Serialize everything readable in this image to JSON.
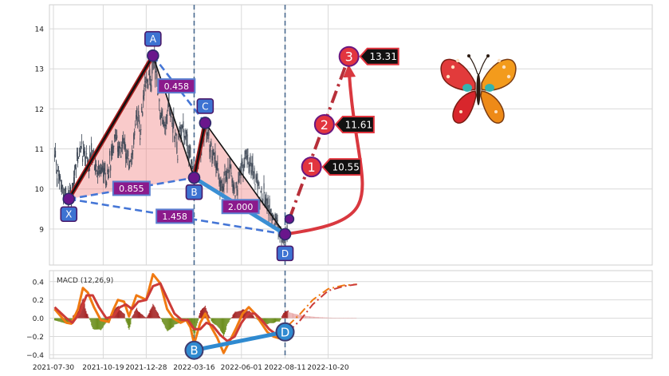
{
  "chart_data": [
    {
      "type": "candlestick",
      "panel": "price",
      "x_ticks": [
        "2021-07-30",
        "2021-10-19",
        "2021-12-28",
        "2022-03-16",
        "2022-06-01",
        "2022-08-11",
        "2022-10-20"
      ],
      "y_ticks": [
        9,
        10,
        11,
        12,
        13,
        14
      ],
      "ylim": [
        8.1,
        14.6
      ],
      "grid": true,
      "price_path": [
        [
          "2021-08-01",
          10.9
        ],
        [
          "2021-08-05",
          10.3
        ],
        [
          "2021-08-12",
          10.0
        ],
        [
          "2021-08-20",
          9.85
        ],
        [
          "2021-08-24",
          9.75
        ],
        [
          "2021-08-30",
          10.0
        ],
        [
          "2021-09-05",
          10.6
        ],
        [
          "2021-09-12",
          11.1
        ],
        [
          "2021-09-18",
          10.8
        ],
        [
          "2021-09-25",
          10.6
        ],
        [
          "2021-10-02",
          11.0
        ],
        [
          "2021-10-10",
          10.4
        ],
        [
          "2021-10-19",
          10.5
        ],
        [
          "2021-10-25",
          10.3
        ],
        [
          "2021-11-01",
          10.8
        ],
        [
          "2021-11-08",
          11.5
        ],
        [
          "2021-11-15",
          10.9
        ],
        [
          "2021-11-22",
          11.2
        ],
        [
          "2021-11-30",
          10.6
        ],
        [
          "2021-12-06",
          11.0
        ],
        [
          "2021-12-12",
          12.0
        ],
        [
          "2021-12-18",
          11.4
        ],
        [
          "2021-12-24",
          12.3
        ],
        [
          "2021-12-30",
          12.8
        ],
        [
          "2022-01-05",
          12.6
        ],
        [
          "2022-01-08",
          13.3
        ],
        [
          "2022-01-14",
          12.8
        ],
        [
          "2022-01-20",
          12.0
        ],
        [
          "2022-01-27",
          11.4
        ],
        [
          "2022-02-03",
          12.2
        ],
        [
          "2022-02-10",
          11.6
        ],
        [
          "2022-02-17",
          11.0
        ],
        [
          "2022-02-24",
          11.8
        ],
        [
          "2022-03-03",
          11.2
        ],
        [
          "2022-03-09",
          10.9
        ],
        [
          "2022-03-16",
          10.3
        ],
        [
          "2022-03-22",
          10.7
        ],
        [
          "2022-03-28",
          11.1
        ],
        [
          "2022-04-03",
          11.6
        ],
        [
          "2022-04-09",
          11.2
        ],
        [
          "2022-04-16",
          10.8
        ],
        [
          "2022-04-23",
          10.6
        ],
        [
          "2022-04-30",
          10.0
        ],
        [
          "2022-05-07",
          10.4
        ],
        [
          "2022-05-14",
          10.5
        ],
        [
          "2022-05-21",
          9.8
        ],
        [
          "2022-05-28",
          10.2
        ],
        [
          "2022-06-04",
          10.6
        ],
        [
          "2022-06-10",
          10.7
        ],
        [
          "2022-06-16",
          10.6
        ],
        [
          "2022-06-20",
          10.5
        ],
        [
          "2022-06-26",
          10.2
        ],
        [
          "2022-07-02",
          9.9
        ],
        [
          "2022-07-09",
          9.8
        ],
        [
          "2022-07-16",
          9.5
        ],
        [
          "2022-07-23",
          9.3
        ],
        [
          "2022-07-30",
          9.1
        ],
        [
          "2022-08-05",
          9.0
        ],
        [
          "2022-08-11",
          8.85
        ],
        [
          "2022-08-14",
          9.05
        ]
      ],
      "pattern": {
        "points": [
          {
            "label": "X",
            "date": "2021-08-24",
            "price": 9.75
          },
          {
            "label": "A",
            "date": "2022-01-08",
            "price": 13.33
          },
          {
            "label": "B",
            "date": "2022-03-16",
            "price": 10.28
          },
          {
            "label": "C",
            "date": "2022-04-03",
            "price": 11.65
          },
          {
            "label": "D",
            "date": "2022-08-11",
            "price": 8.87
          }
        ],
        "ratios": [
          {
            "value": "0.458",
            "between": [
              "A",
              "C"
            ]
          },
          {
            "value": "0.855",
            "between": [
              "X",
              "B"
            ]
          },
          {
            "value": "1.458",
            "between": [
              "X",
              "D"
            ]
          },
          {
            "value": "2.000",
            "between": [
              "B",
              "D"
            ]
          }
        ],
        "targets": [
          {
            "label": "1",
            "date": "2022-09-23",
            "price": 10.55,
            "text": "10.55"
          },
          {
            "label": "2",
            "date": "2022-10-14",
            "price": 11.61,
            "text": "11.61"
          },
          {
            "label": "3",
            "date": "2022-11-23",
            "price": 13.31,
            "text": "13.31"
          }
        ],
        "vertical_markers": [
          "2022-03-16",
          "2022-08-11"
        ],
        "projection_start": {
          "date": "2022-08-18",
          "price": 9.25
        }
      }
    },
    {
      "type": "line",
      "panel": "indicator",
      "title": "MACD (12,26,9)",
      "x_ticks": [
        "2021-07-30",
        "2021-10-19",
        "2021-12-28",
        "2022-03-16",
        "2022-06-01",
        "2022-08-11",
        "2022-10-20"
      ],
      "y_ticks": [
        "0.4",
        "0.2",
        "0.0",
        "−0.2",
        "−0.4"
      ],
      "ylim": [
        -0.44,
        0.52
      ],
      "grid": true,
      "series": [
        {
          "key": "macd",
          "color": "#f07a12",
          "points": [
            [
              "2021-08-01",
              0.1
            ],
            [
              "2021-08-20",
              -0.05
            ],
            [
              "2021-08-28",
              -0.06
            ],
            [
              "2021-09-08",
              0.1
            ],
            [
              "2021-09-16",
              0.33
            ],
            [
              "2021-09-24",
              0.28
            ],
            [
              "2021-10-04",
              0.12
            ],
            [
              "2021-10-15",
              -0.02
            ],
            [
              "2021-10-28",
              -0.04
            ],
            [
              "2021-11-05",
              0.1
            ],
            [
              "2021-11-12",
              0.2
            ],
            [
              "2021-11-22",
              0.18
            ],
            [
              "2021-11-30",
              0.02
            ],
            [
              "2021-12-12",
              0.25
            ],
            [
              "2021-12-22",
              0.22
            ],
            [
              "2021-12-28",
              0.2
            ],
            [
              "2022-01-08",
              0.48
            ],
            [
              "2022-01-20",
              0.38
            ],
            [
              "2022-01-31",
              0.1
            ],
            [
              "2022-02-10",
              0.0
            ],
            [
              "2022-02-22",
              -0.05
            ],
            [
              "2022-03-03",
              -0.02
            ],
            [
              "2022-03-10",
              -0.1
            ],
            [
              "2022-03-16",
              -0.28
            ],
            [
              "2022-03-26",
              -0.05
            ],
            [
              "2022-04-03",
              0.05
            ],
            [
              "2022-04-13",
              -0.1
            ],
            [
              "2022-04-23",
              -0.22
            ],
            [
              "2022-05-03",
              -0.38
            ],
            [
              "2022-05-13",
              -0.25
            ],
            [
              "2022-05-24",
              -0.1
            ],
            [
              "2022-06-03",
              0.05
            ],
            [
              "2022-06-13",
              0.12
            ],
            [
              "2022-06-23",
              0.05
            ],
            [
              "2022-07-03",
              -0.05
            ],
            [
              "2022-07-13",
              -0.15
            ],
            [
              "2022-07-23",
              -0.2
            ],
            [
              "2022-08-02",
              -0.22
            ],
            [
              "2022-08-11",
              -0.12
            ],
            [
              "2022-08-16",
              -0.08
            ]
          ]
        },
        {
          "key": "signal",
          "color": "#cc3b37",
          "points": [
            [
              "2021-08-01",
              0.12
            ],
            [
              "2021-08-20",
              0.0
            ],
            [
              "2021-08-30",
              -0.05
            ],
            [
              "2021-09-10",
              0.05
            ],
            [
              "2021-09-22",
              0.25
            ],
            [
              "2021-10-02",
              0.25
            ],
            [
              "2021-10-12",
              0.12
            ],
            [
              "2021-10-24",
              0.0
            ],
            [
              "2021-11-05",
              0.02
            ],
            [
              "2021-11-15",
              0.12
            ],
            [
              "2021-11-25",
              0.15
            ],
            [
              "2021-12-05",
              0.1
            ],
            [
              "2021-12-15",
              0.18
            ],
            [
              "2021-12-28",
              0.2
            ],
            [
              "2022-01-08",
              0.35
            ],
            [
              "2022-01-20",
              0.38
            ],
            [
              "2022-01-31",
              0.22
            ],
            [
              "2022-02-12",
              0.05
            ],
            [
              "2022-02-24",
              -0.02
            ],
            [
              "2022-03-06",
              -0.02
            ],
            [
              "2022-03-16",
              -0.12
            ],
            [
              "2022-03-26",
              -0.12
            ],
            [
              "2022-04-05",
              -0.05
            ],
            [
              "2022-04-15",
              -0.08
            ],
            [
              "2022-04-27",
              -0.18
            ],
            [
              "2022-05-09",
              -0.25
            ],
            [
              "2022-05-21",
              -0.2
            ],
            [
              "2022-06-01",
              -0.05
            ],
            [
              "2022-06-12",
              0.05
            ],
            [
              "2022-06-23",
              0.05
            ],
            [
              "2022-07-04",
              -0.02
            ],
            [
              "2022-07-16",
              -0.12
            ],
            [
              "2022-07-28",
              -0.18
            ],
            [
              "2022-08-08",
              -0.2
            ],
            [
              "2022-08-16",
              -0.15
            ]
          ]
        }
      ],
      "projection": [
        {
          "key": "macd",
          "color": "#f07a12",
          "points": [
            [
              "2022-08-16",
              -0.08
            ],
            [
              "2022-09-05",
              0.05
            ],
            [
              "2022-09-25",
              0.2
            ],
            [
              "2022-10-20",
              0.32
            ],
            [
              "2022-11-15",
              0.36
            ],
            [
              "2022-12-06",
              0.37
            ]
          ]
        },
        {
          "key": "signal",
          "color": "#cc3b37",
          "points": [
            [
              "2022-08-16",
              -0.15
            ],
            [
              "2022-09-05",
              -0.02
            ],
            [
              "2022-09-25",
              0.15
            ],
            [
              "2022-10-20",
              0.3
            ],
            [
              "2022-11-15",
              0.35
            ],
            [
              "2022-12-06",
              0.37
            ]
          ]
        }
      ],
      "divergence": [
        {
          "label": "B",
          "date": "2022-03-16",
          "value": -0.35
        },
        {
          "label": "D",
          "date": "2022-08-11",
          "value": -0.15
        }
      ]
    }
  ]
}
